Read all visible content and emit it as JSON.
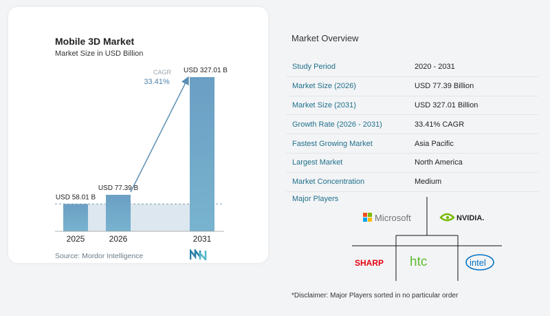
{
  "chart_data": {
    "type": "bar",
    "title": "Mobile 3D Market",
    "subtitle": "Market Size in USD Billion",
    "categories": [
      "2025",
      "2026",
      "2031"
    ],
    "values": [
      58.01,
      77.39,
      327.01
    ],
    "value_labels": [
      "USD 58.01 B",
      "USD 77.39 B",
      "USD 327.01 B"
    ],
    "cagr_label": "CAGR",
    "cagr_value": "33.41%",
    "ylim": [
      0,
      327.01
    ],
    "colors": {
      "bar_top": "#6fa3c3",
      "bar_bottom": "#6ea8c8",
      "arrow": "#5b8fb3",
      "band": "#dde7ef"
    }
  },
  "source": "Source: Mordor Intelligence",
  "overview": {
    "title": "Market Overview",
    "rows": [
      {
        "label": "Study Period",
        "value": "2020 - 2031"
      },
      {
        "label": "Market Size (2026)",
        "value": "USD 77.39 Billion"
      },
      {
        "label": "Market Size (2031)",
        "value": "USD 327.01 Billion"
      },
      {
        "label": "Growth Rate (2026 - 2031)",
        "value": "33.41% CAGR"
      },
      {
        "label": "Fastest Growing Market",
        "value": "Asia Pacific"
      },
      {
        "label": "Largest Market",
        "value": "North America"
      },
      {
        "label": "Market Concentration",
        "value": "Medium"
      }
    ]
  },
  "players": {
    "title": "Major Players",
    "names": [
      "Microsoft",
      "NVIDIA.",
      "SHARP",
      "htc",
      "intel"
    ],
    "disclaimer": "*Disclaimer: Major Players sorted in no particular order"
  }
}
